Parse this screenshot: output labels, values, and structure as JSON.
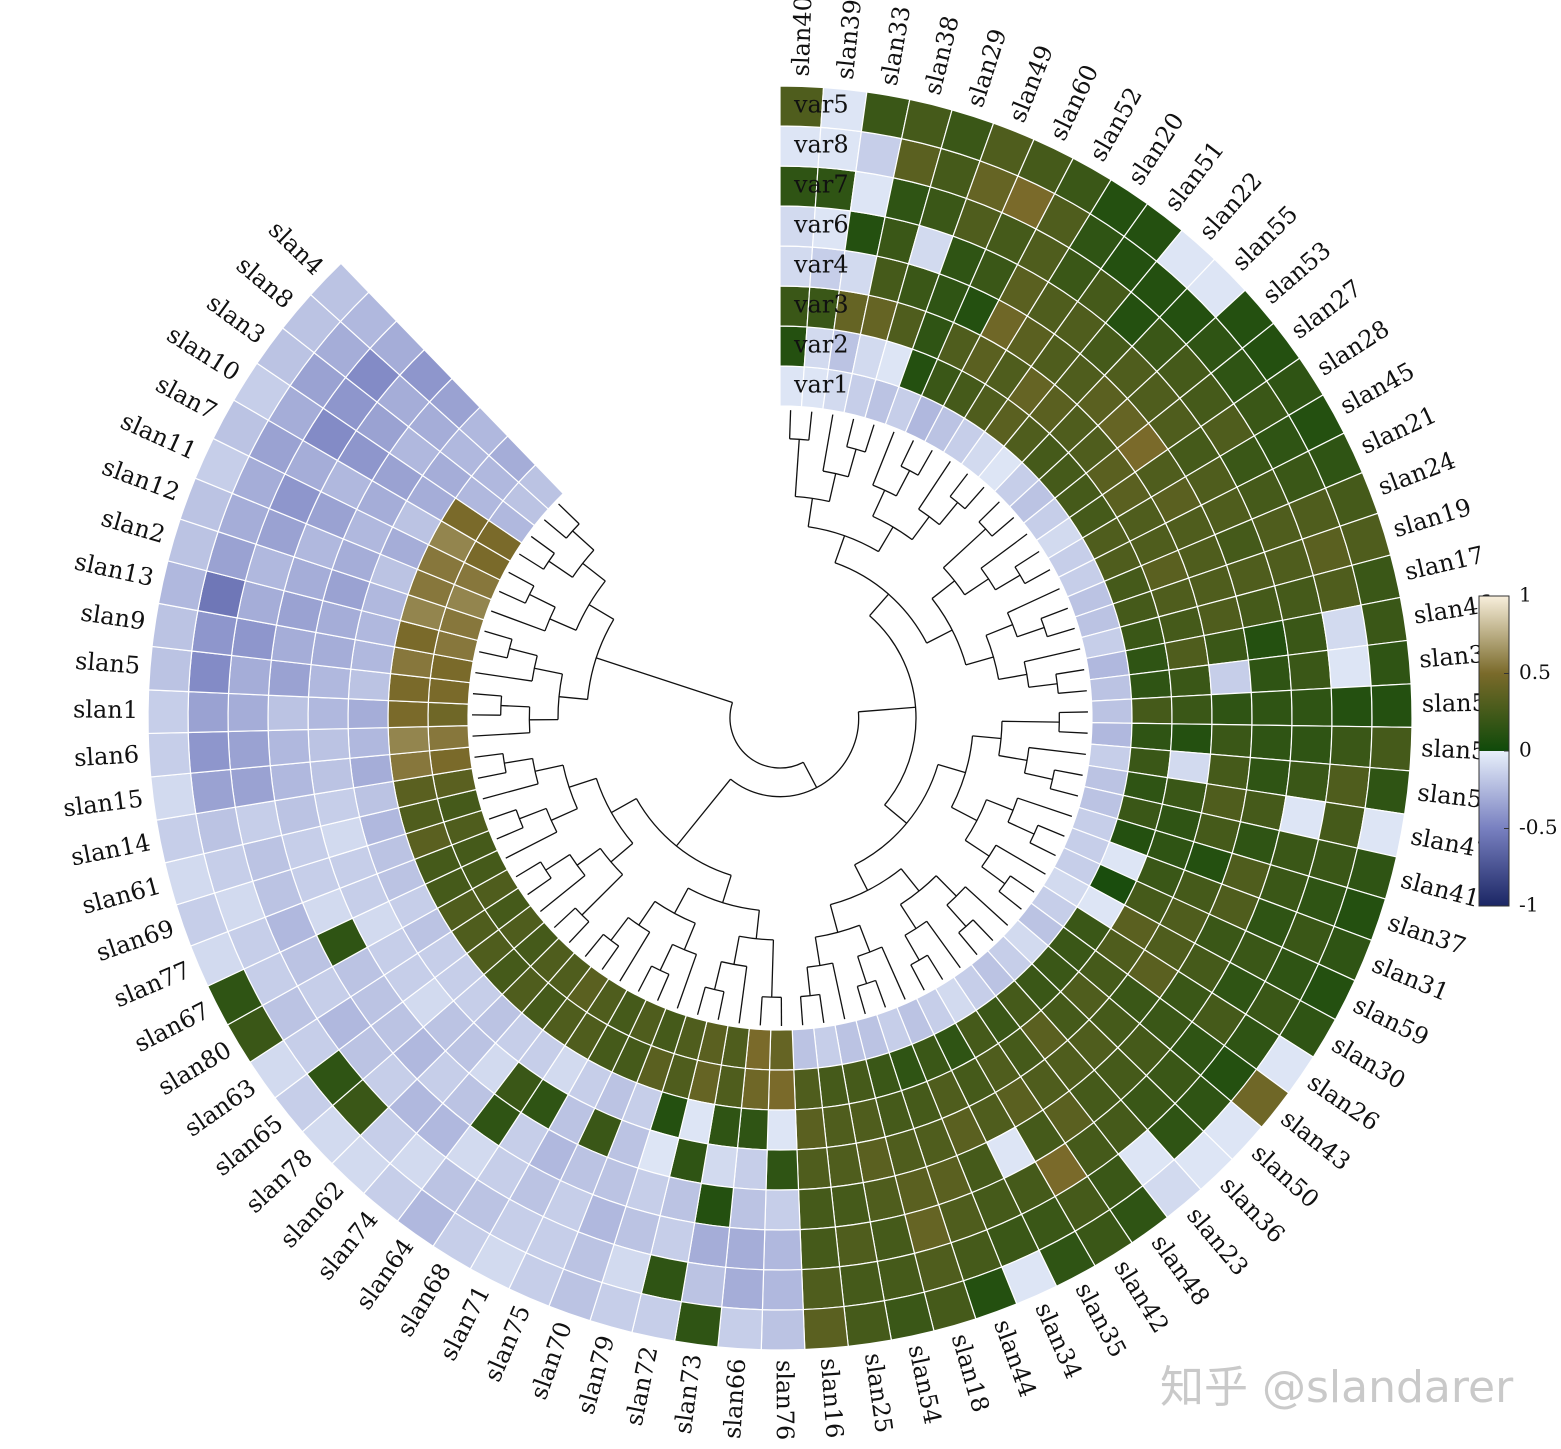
{
  "chart_data": {
    "type": "heatmap",
    "layout": "circular",
    "variables": [
      "var1",
      "var2",
      "var3",
      "var4",
      "var6",
      "var7",
      "var8",
      "var5"
    ],
    "samples": [
      "slan40",
      "slan39",
      "slan33",
      "slan38",
      "slan29",
      "slan49",
      "slan60",
      "slan52",
      "slan20",
      "slan51",
      "slan22",
      "slan55",
      "slan53",
      "slan27",
      "slan28",
      "slan45",
      "slan21",
      "slan24",
      "slan19",
      "slan17",
      "slan46",
      "slan32",
      "slan58",
      "slan57",
      "slan56",
      "slan47",
      "slan41",
      "slan37",
      "slan31",
      "slan59",
      "slan30",
      "slan26",
      "slan43",
      "slan50",
      "slan36",
      "slan23",
      "slan48",
      "slan42",
      "slan35",
      "slan34",
      "slan44",
      "slan18",
      "slan54",
      "slan25",
      "slan16",
      "slan76",
      "slan66",
      "slan73",
      "slan72",
      "slan79",
      "slan70",
      "slan75",
      "slan71",
      "slan68",
      "slan64",
      "slan74",
      "slan62",
      "slan78",
      "slan65",
      "slan63",
      "slan80",
      "slan67",
      "slan77",
      "slan69",
      "slan61",
      "slan14",
      "slan15",
      "slan6",
      "slan1",
      "slan5",
      "slan9",
      "slan13",
      "slan2",
      "slan12",
      "slan11",
      "slan7",
      "slan10",
      "slan3",
      "slan8",
      "slan4"
    ],
    "values": [
      [
        -0.05,
        0.1,
        0.2,
        -0.1,
        -0.1,
        0.15,
        -0.05,
        0.3
      ],
      [
        -0.05,
        -0.1,
        0.2,
        -0.15,
        -0.05,
        0.15,
        -0.05,
        -0.05
      ],
      [
        -0.1,
        -0.2,
        0.4,
        -0.1,
        0.1,
        -0.05,
        -0.15,
        0.2
      ],
      [
        -0.15,
        -0.1,
        0.4,
        0.25,
        0.2,
        0.15,
        0.35,
        0.25
      ],
      [
        -0.2,
        -0.05,
        0.3,
        0.2,
        -0.1,
        0.2,
        0.25,
        0.2
      ],
      [
        -0.15,
        0.1,
        0.15,
        0.15,
        0.15,
        0.3,
        0.4,
        0.3
      ],
      [
        -0.25,
        0.2,
        0.3,
        0.1,
        0.2,
        0.25,
        0.5,
        0.25
      ],
      [
        -0.2,
        0.25,
        0.35,
        0.45,
        0.35,
        0.3,
        0.3,
        0.2
      ],
      [
        -0.15,
        0.3,
        0.3,
        0.35,
        0.3,
        0.2,
        0.15,
        0.1
      ],
      [
        -0.1,
        0.35,
        0.4,
        0.3,
        0.3,
        0.25,
        0.1,
        0.1
      ],
      [
        -0.05,
        0.3,
        0.35,
        0.3,
        0.25,
        0.1,
        0.1,
        -0.05
      ],
      [
        -0.15,
        0.25,
        0.3,
        0.35,
        0.3,
        0.2,
        0.1,
        -0.05
      ],
      [
        -0.2,
        0.25,
        0.3,
        0.4,
        0.3,
        0.25,
        0.15,
        0.1
      ],
      [
        -0.15,
        0.25,
        0.35,
        0.5,
        0.3,
        0.25,
        0.15,
        0.1
      ],
      [
        -0.1,
        0.25,
        0.35,
        0.3,
        0.25,
        0.3,
        0.2,
        0.15
      ],
      [
        -0.15,
        0.3,
        0.3,
        0.35,
        0.3,
        0.2,
        0.15,
        0.1
      ],
      [
        -0.15,
        0.3,
        0.3,
        0.3,
        0.3,
        0.25,
        0.2,
        0.15
      ],
      [
        -0.2,
        0.25,
        0.35,
        0.3,
        0.25,
        0.3,
        0.3,
        0.25
      ],
      [
        -0.2,
        0.25,
        0.3,
        0.3,
        0.3,
        0.3,
        0.35,
        0.3
      ],
      [
        -0.15,
        0.2,
        0.25,
        0.3,
        0.25,
        0.25,
        0.3,
        0.2
      ],
      [
        -0.25,
        0.15,
        0.3,
        0.2,
        0.1,
        0.2,
        -0.1,
        0.2
      ],
      [
        -0.2,
        0.15,
        0.2,
        -0.15,
        0.15,
        0.2,
        -0.05,
        0.15
      ],
      [
        -0.2,
        0.25,
        0.2,
        0.15,
        0.15,
        0.15,
        0.1,
        0.1
      ],
      [
        -0.25,
        0.15,
        0.1,
        0.2,
        0.15,
        0.15,
        0.2,
        0.25
      ],
      [
        -0.15,
        0.2,
        -0.1,
        0.25,
        0.15,
        0.2,
        0.3,
        0.15
      ],
      [
        -0.2,
        0.15,
        0.2,
        0.3,
        0.25,
        -0.05,
        0.25,
        -0.05
      ],
      [
        -0.2,
        0.2,
        0.15,
        0.25,
        0.15,
        0.2,
        0.2,
        0.15
      ],
      [
        -0.15,
        0.1,
        0.15,
        0.1,
        0.3,
        0.2,
        0.15,
        0.1
      ],
      [
        -0.15,
        -0.05,
        0.2,
        0.25,
        0.3,
        0.15,
        0.2,
        0.15
      ],
      [
        -0.15,
        0.05,
        0.25,
        0.3,
        0.2,
        0.2,
        0.15,
        0.1
      ],
      [
        -0.1,
        -0.05,
        0.35,
        0.3,
        0.25,
        0.15,
        0.2,
        0.15
      ],
      [
        -0.15,
        0.2,
        0.3,
        0.35,
        0.2,
        0.25,
        0.15,
        -0.05
      ],
      [
        -0.2,
        0.2,
        0.25,
        0.2,
        0.2,
        0.15,
        0.1,
        0.45
      ],
      [
        -0.1,
        0.2,
        0.3,
        0.25,
        0.25,
        0.2,
        0.15,
        -0.05
      ],
      [
        -0.15,
        0.2,
        0.25,
        0.3,
        0.25,
        0.2,
        0.15,
        -0.05
      ],
      [
        -0.2,
        0.25,
        0.35,
        0.3,
        0.25,
        0.25,
        -0.05,
        -0.1
      ],
      [
        -0.15,
        0.2,
        0.25,
        0.3,
        0.35,
        0.25,
        0.2,
        0.15
      ],
      [
        -0.1,
        0.25,
        0.3,
        0.35,
        0.25,
        0.5,
        0.25,
        0.2
      ],
      [
        -0.15,
        0.15,
        0.25,
        0.3,
        -0.05,
        0.25,
        0.2,
        0.15
      ],
      [
        -0.2,
        0.2,
        0.3,
        0.35,
        0.25,
        0.25,
        0.2,
        -0.05
      ],
      [
        -0.15,
        0.15,
        0.25,
        0.3,
        0.35,
        0.3,
        0.25,
        0.1
      ],
      [
        -0.2,
        0.2,
        0.25,
        0.3,
        0.35,
        0.4,
        0.3,
        0.25
      ],
      [
        -0.2,
        0.25,
        0.3,
        0.35,
        0.3,
        0.25,
        0.25,
        0.2
      ],
      [
        -0.15,
        0.25,
        0.3,
        0.3,
        0.25,
        0.3,
        0.25,
        0.25
      ],
      [
        -0.2,
        0.3,
        0.35,
        0.3,
        0.25,
        0.25,
        0.3,
        0.35
      ],
      [
        0.4,
        0.5,
        -0.05,
        0.15,
        -0.15,
        -0.25,
        -0.25,
        -0.2
      ],
      [
        0.5,
        0.45,
        0.15,
        -0.15,
        -0.2,
        -0.3,
        -0.3,
        -0.15
      ],
      [
        0.3,
        0.3,
        0.15,
        -0.1,
        0.1,
        -0.3,
        -0.2,
        0.15
      ],
      [
        0.35,
        0.4,
        -0.05,
        0.15,
        -0.2,
        -0.15,
        0.15,
        -0.15
      ],
      [
        0.3,
        0.3,
        0.1,
        -0.05,
        -0.15,
        -0.2,
        -0.1,
        -0.15
      ],
      [
        0.25,
        0.35,
        -0.15,
        -0.2,
        -0.2,
        -0.25,
        -0.2,
        -0.2
      ],
      [
        0.3,
        0.25,
        -0.2,
        0.2,
        -0.2,
        -0.15,
        -0.15,
        -0.15
      ],
      [
        0.25,
        0.25,
        -0.15,
        -0.2,
        -0.25,
        -0.2,
        -0.15,
        -0.1
      ],
      [
        0.3,
        0.3,
        -0.1,
        0.15,
        -0.15,
        -0.15,
        -0.2,
        -0.15
      ],
      [
        0.35,
        0.3,
        -0.15,
        0.2,
        0.15,
        -0.1,
        -0.2,
        -0.25
      ],
      [
        0.3,
        0.25,
        -0.15,
        -0.1,
        -0.2,
        -0.25,
        -0.1,
        -0.15
      ],
      [
        0.3,
        0.3,
        -0.2,
        -0.2,
        -0.15,
        -0.25,
        -0.15,
        -0.1
      ],
      [
        0.25,
        0.25,
        -0.15,
        -0.2,
        -0.25,
        -0.15,
        0.2,
        -0.1
      ],
      [
        0.3,
        0.3,
        -0.15,
        -0.1,
        -0.2,
        -0.2,
        0.15,
        -0.15
      ],
      [
        0.25,
        0.3,
        -0.15,
        -0.15,
        -0.2,
        -0.25,
        -0.15,
        -0.1
      ],
      [
        0.3,
        0.3,
        -0.2,
        -0.15,
        -0.2,
        -0.15,
        -0.2,
        0.2
      ],
      [
        0.25,
        0.25,
        -0.15,
        -0.1,
        0.15,
        -0.2,
        -0.15,
        0.15
      ],
      [
        0.25,
        0.25,
        -0.2,
        -0.15,
        -0.1,
        -0.25,
        -0.15,
        -0.1
      ],
      [
        0.3,
        0.35,
        -0.2,
        -0.15,
        -0.15,
        -0.2,
        -0.1,
        -0.15
      ],
      [
        0.25,
        0.3,
        -0.25,
        -0.1,
        -0.15,
        -0.2,
        -0.15,
        -0.1
      ],
      [
        0.35,
        0.35,
        -0.2,
        -0.15,
        -0.2,
        -0.15,
        -0.2,
        -0.15
      ],
      [
        0.5,
        0.55,
        -0.3,
        -0.2,
        -0.25,
        -0.35,
        -0.35,
        -0.1
      ],
      [
        0.55,
        0.6,
        -0.25,
        -0.2,
        -0.25,
        -0.35,
        -0.4,
        -0.15
      ],
      [
        0.45,
        0.5,
        -0.3,
        -0.25,
        -0.2,
        -0.3,
        -0.35,
        -0.15
      ],
      [
        0.5,
        0.5,
        -0.2,
        -0.25,
        -0.35,
        -0.3,
        -0.45,
        -0.2
      ],
      [
        0.5,
        0.55,
        -0.25,
        -0.3,
        -0.3,
        -0.4,
        -0.4,
        -0.2
      ],
      [
        0.55,
        0.5,
        -0.25,
        -0.3,
        -0.35,
        -0.3,
        -0.55,
        -0.25
      ],
      [
        0.55,
        0.6,
        -0.25,
        -0.35,
        -0.3,
        -0.25,
        -0.35,
        -0.2
      ],
      [
        0.6,
        0.55,
        -0.2,
        -0.3,
        -0.25,
        -0.35,
        -0.3,
        -0.2
      ],
      [
        0.55,
        0.55,
        -0.3,
        -0.25,
        -0.35,
        -0.4,
        -0.3,
        -0.15
      ],
      [
        0.5,
        0.6,
        -0.2,
        -0.3,
        -0.25,
        -0.3,
        -0.35,
        -0.2
      ],
      [
        0.5,
        0.5,
        -0.3,
        -0.35,
        -0.4,
        -0.45,
        -0.3,
        -0.15
      ],
      [
        -0.25,
        -0.25,
        -0.3,
        -0.25,
        -0.35,
        -0.4,
        -0.35,
        -0.2
      ],
      [
        -0.2,
        -0.25,
        -0.25,
        -0.3,
        -0.3,
        -0.45,
        -0.3,
        -0.2
      ],
      [
        -0.2,
        -0.3,
        -0.25,
        -0.35,
        -0.4,
        -0.3,
        -0.25,
        -0.2
      ]
    ],
    "colorbar": {
      "ticks": [
        "1",
        "0.5",
        "0",
        "-0.5",
        "-1"
      ],
      "range": [
        -1,
        1
      ],
      "colors": {
        "neg_dark": "#1b2664",
        "neg_mid": "#7880c0",
        "neg_light": "#e8f0fb",
        "zero_dark": "#0f4a0a",
        "pos_mid": "#7a6a2a",
        "pos_light": "#f8efdc"
      }
    },
    "dendrogram": true,
    "grid": false,
    "legend_placement": "right"
  },
  "watermark": "知乎 @slandarer"
}
